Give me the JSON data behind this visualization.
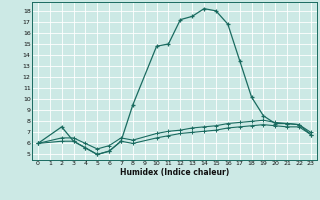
{
  "xlabel": "Humidex (Indice chaleur)",
  "bg_color": "#cce9e5",
  "grid_color": "#ffffff",
  "line_color": "#1a6b60",
  "xlim": [
    -0.5,
    23.5
  ],
  "ylim": [
    4.5,
    18.8
  ],
  "xticks": [
    0,
    1,
    2,
    3,
    4,
    5,
    6,
    7,
    8,
    9,
    10,
    11,
    12,
    13,
    14,
    15,
    16,
    17,
    18,
    19,
    20,
    21,
    22,
    23
  ],
  "yticks": [
    5,
    6,
    7,
    8,
    9,
    10,
    11,
    12,
    13,
    14,
    15,
    16,
    17,
    18
  ],
  "main_x": [
    0,
    2,
    3,
    4,
    5,
    6,
    7,
    8,
    10,
    11,
    12,
    13,
    14,
    15,
    16,
    17,
    18,
    19,
    20,
    21,
    22,
    23
  ],
  "main_y": [
    6.0,
    7.5,
    6.2,
    5.6,
    5.0,
    5.3,
    6.2,
    9.5,
    14.8,
    15.0,
    17.2,
    17.5,
    18.2,
    18.0,
    16.8,
    13.5,
    10.2,
    8.5,
    7.8,
    7.8,
    7.7,
    6.8
  ],
  "flat1_x": [
    0,
    2,
    3,
    4,
    5,
    6,
    7,
    8,
    10,
    11,
    12,
    13,
    14,
    15,
    16,
    17,
    18,
    19,
    20,
    21,
    22,
    23
  ],
  "flat1_y": [
    6.0,
    6.2,
    6.2,
    5.6,
    5.0,
    5.3,
    6.2,
    6.0,
    6.5,
    6.7,
    6.9,
    7.0,
    7.1,
    7.2,
    7.4,
    7.5,
    7.6,
    7.7,
    7.6,
    7.5,
    7.5,
    6.8
  ],
  "flat2_x": [
    0,
    2,
    3,
    4,
    5,
    6,
    7,
    8,
    10,
    11,
    12,
    13,
    14,
    15,
    16,
    17,
    18,
    19,
    20,
    21,
    22,
    23
  ],
  "flat2_y": [
    6.0,
    6.5,
    6.5,
    6.0,
    5.5,
    5.8,
    6.5,
    6.3,
    6.9,
    7.1,
    7.2,
    7.4,
    7.5,
    7.6,
    7.8,
    7.9,
    8.0,
    8.1,
    7.9,
    7.8,
    7.7,
    7.0
  ]
}
